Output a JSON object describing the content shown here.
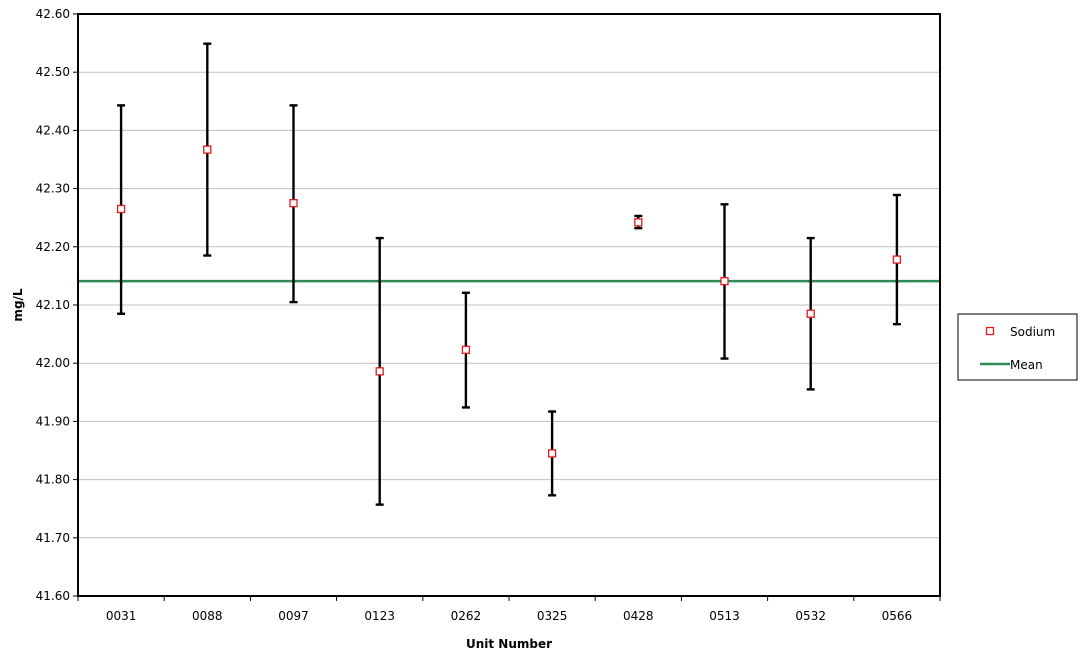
{
  "chart_data": {
    "type": "scatter",
    "title": "",
    "xlabel": "Unit Number",
    "ylabel": "mg/L",
    "categories": [
      "0031",
      "0088",
      "0097",
      "0123",
      "0262",
      "0325",
      "0428",
      "0513",
      "0532",
      "0566"
    ],
    "ylim": [
      41.6,
      42.6
    ],
    "yticks": [
      "41.60",
      "41.70",
      "41.80",
      "41.90",
      "42.00",
      "42.10",
      "42.20",
      "42.30",
      "42.40",
      "42.50",
      "42.60"
    ],
    "grid": true,
    "legend_position": "right",
    "series": [
      {
        "name": "Sodium",
        "marker": "square",
        "color": "#e41a1c",
        "values": [
          42.265,
          42.367,
          42.275,
          41.986,
          42.023,
          41.845,
          42.242,
          42.141,
          42.085,
          42.178
        ],
        "error_low": [
          42.085,
          42.185,
          42.105,
          41.757,
          41.924,
          41.773,
          42.232,
          42.008,
          41.955,
          42.067
        ],
        "error_high": [
          42.443,
          42.549,
          42.443,
          42.215,
          42.121,
          41.917,
          42.253,
          42.273,
          42.215,
          42.289
        ],
        "error_color": "#000000"
      },
      {
        "name": "Mean",
        "type": "line",
        "color": "#2e8b57",
        "value": 42.141
      }
    ]
  }
}
